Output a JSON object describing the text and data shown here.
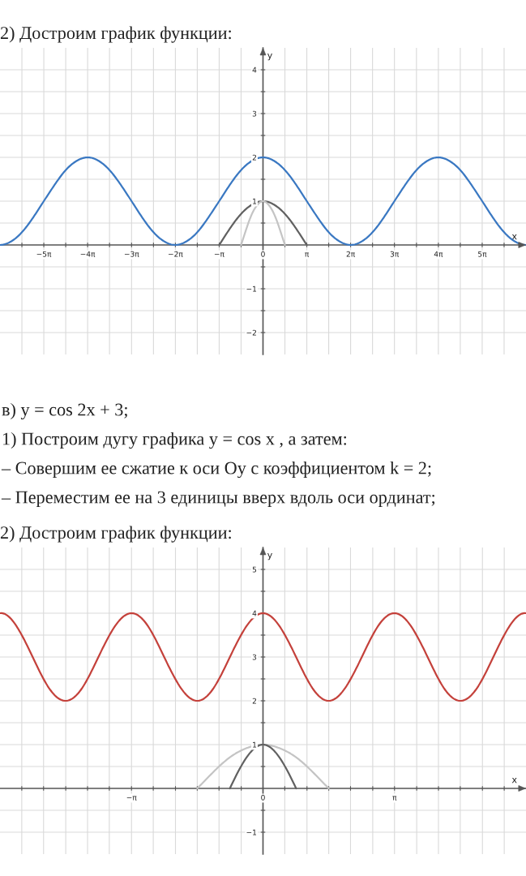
{
  "chart_data": [
    {
      "type": "line",
      "title": "2) Достроим график функции:",
      "xlabel": "x",
      "ylabel": "y",
      "xlim": [
        -18.85,
        18.85
      ],
      "ylim": [
        -2.5,
        4.5
      ],
      "xticks": [
        {
          "value": -17.28,
          "label": null
        },
        {
          "value": -15.71,
          "label": "−5π"
        },
        {
          "value": -14.14,
          "label": null
        },
        {
          "value": -12.57,
          "label": "−4π"
        },
        {
          "value": -11.0,
          "label": null
        },
        {
          "value": -9.42,
          "label": "−3π"
        },
        {
          "value": -7.85,
          "label": null
        },
        {
          "value": -6.28,
          "label": "−2π"
        },
        {
          "value": -4.71,
          "label": null
        },
        {
          "value": -3.14,
          "label": "−π"
        },
        {
          "value": -1.57,
          "label": null
        },
        0,
        {
          "value": 1.57,
          "label": null
        },
        {
          "value": 3.14,
          "label": "π"
        },
        {
          "value": 4.71,
          "label": null
        },
        {
          "value": 6.28,
          "label": "2π"
        },
        {
          "value": 7.85,
          "label": null
        },
        {
          "value": 9.42,
          "label": "3π"
        },
        {
          "value": 11.0,
          "label": null
        },
        {
          "value": 12.57,
          "label": "4π"
        },
        {
          "value": 14.14,
          "label": null
        },
        {
          "value": 15.71,
          "label": "5π"
        },
        {
          "value": 17.28,
          "label": null
        }
      ],
      "yticks": [
        {
          "value": -2,
          "label": "−2"
        },
        {
          "value": -1.5,
          "label": null
        },
        {
          "value": -1,
          "label": "−1"
        },
        {
          "value": -0.5,
          "label": null
        },
        {
          "value": 0.5,
          "label": null
        },
        1,
        {
          "value": 1.5,
          "label": null
        },
        2,
        {
          "value": 2.5,
          "label": null
        },
        3,
        {
          "value": 3.5,
          "label": null
        },
        4
      ],
      "grid": true,
      "line_style": "solid",
      "series": [
        {
          "color": "#3a78c2",
          "x": [
            -18.85,
            -18.06,
            -17.28,
            -16.49,
            -15.71,
            -14.92,
            -14.14,
            -13.35,
            -12.57,
            -11.78,
            -11.0,
            -10.21,
            -9.42,
            -8.64,
            -7.85,
            -7.07,
            -6.28,
            -5.5,
            -4.71,
            -3.93,
            -3.14,
            -2.36,
            -1.57,
            -0.79,
            0,
            0.79,
            1.57,
            2.36,
            3.14,
            3.93,
            4.71,
            5.5,
            6.28,
            7.07,
            7.85,
            8.64,
            9.42,
            10.21,
            11.0,
            11.78,
            12.57,
            13.35,
            14.14,
            14.92,
            15.71,
            16.49,
            17.28,
            18.06,
            18.85
          ],
          "values": [
            0,
            0.08,
            0.29,
            0.62,
            1,
            1.38,
            1.71,
            1.92,
            2,
            1.92,
            1.71,
            1.38,
            1,
            0.62,
            0.29,
            0.08,
            0,
            0.08,
            0.29,
            0.62,
            1,
            1.38,
            1.71,
            1.92,
            2,
            1.92,
            1.71,
            1.38,
            1,
            0.62,
            0.29,
            0.08,
            0,
            0.08,
            0.29,
            0.62,
            1,
            1.38,
            1.71,
            1.92,
            2,
            1.92,
            1.71,
            1.38,
            1,
            0.62,
            0.29,
            0.08,
            0
          ]
        },
        {
          "color": "#616161",
          "x": [
            -3.14,
            -2.36,
            -1.57,
            -0.79,
            0,
            0.79,
            1.57,
            2.36,
            3.14
          ],
          "values": [
            0,
            0.38,
            0.71,
            0.92,
            1,
            0.92,
            0.71,
            0.38,
            0
          ]
        },
        {
          "color": "#c4c4c4",
          "x": [
            -1.57,
            -1.18,
            -0.79,
            -0.39,
            0,
            0.39,
            0.79,
            1.18,
            1.57
          ],
          "values": [
            0,
            0.38,
            0.71,
            0.92,
            1,
            0.92,
            0.71,
            0.38,
            0
          ]
        }
      ]
    },
    {
      "type": "line",
      "title": "2) Достроим график функции:",
      "annotations": [
        "в) y = cos 2x + 3;",
        "1) Построим дугу графика y = cos x , а затем:",
        "– Совершим ее сжатие к оси Oy с коэффициентом k = 2;",
        "– Переместим ее на 3 единицы вверх вдоль оси ординат;"
      ],
      "xlabel": "x",
      "ylabel": "y",
      "xlim": [
        -6.28,
        6.28
      ],
      "ylim": [
        -1.5,
        5.5
      ],
      "xticks": [
        {
          "value": -5.76,
          "label": null
        },
        {
          "value": -5.24,
          "label": null
        },
        {
          "value": -4.71,
          "label": null
        },
        {
          "value": -4.19,
          "label": null
        },
        {
          "value": -3.67,
          "label": null
        },
        {
          "value": -3.14,
          "label": "−π"
        },
        {
          "value": -2.62,
          "label": null
        },
        {
          "value": -2.09,
          "label": null
        },
        {
          "value": -1.57,
          "label": null
        },
        {
          "value": -1.05,
          "label": null
        },
        {
          "value": -0.52,
          "label": null
        },
        0,
        {
          "value": 0.52,
          "label": null
        },
        {
          "value": 1.05,
          "label": null
        },
        {
          "value": 1.57,
          "label": null
        },
        {
          "value": 2.09,
          "label": null
        },
        {
          "value": 2.62,
          "label": null
        },
        {
          "value": 3.14,
          "label": "π"
        },
        {
          "value": 3.67,
          "label": null
        },
        {
          "value": 4.19,
          "label": null
        },
        {
          "value": 4.71,
          "label": null
        },
        {
          "value": 5.24,
          "label": null
        },
        {
          "value": 5.76,
          "label": null
        }
      ],
      "yticks": [
        {
          "value": -1,
          "label": "−1"
        },
        {
          "value": -0.5,
          "label": null
        },
        {
          "value": 0.5,
          "label": null
        },
        1,
        {
          "value": 1.5,
          "label": null
        },
        2,
        {
          "value": 2.5,
          "label": null
        },
        3,
        {
          "value": 3.5,
          "label": null
        },
        4,
        {
          "value": 4.5,
          "label": null
        },
        5
      ],
      "grid": true,
      "line_style": "solid",
      "series": [
        {
          "color": "#c4413b",
          "x": [
            -6.28,
            -5.89,
            -5.5,
            -5.11,
            -4.71,
            -4.32,
            -3.93,
            -3.53,
            -3.14,
            -2.75,
            -2.36,
            -1.96,
            -1.57,
            -1.18,
            -0.79,
            -0.39,
            0,
            0.39,
            0.79,
            1.18,
            1.57,
            1.96,
            2.36,
            2.75,
            3.14,
            3.53,
            3.93,
            4.32,
            4.71,
            5.11,
            5.5,
            5.89,
            6.28
          ],
          "values": [
            4,
            3.71,
            3,
            2.29,
            2,
            2.29,
            3,
            3.71,
            4,
            3.71,
            3,
            2.29,
            2,
            2.29,
            3,
            3.71,
            4,
            3.71,
            3,
            2.29,
            2,
            2.29,
            3,
            3.71,
            4,
            3.71,
            3,
            2.29,
            2,
            2.29,
            3,
            3.71,
            4
          ]
        },
        {
          "color": "#c4c4c4",
          "x": [
            -1.57,
            -1.18,
            -0.79,
            -0.39,
            0,
            0.39,
            0.79,
            1.18,
            1.57
          ],
          "values": [
            0,
            0.38,
            0.71,
            0.92,
            1,
            0.92,
            0.71,
            0.38,
            0
          ]
        },
        {
          "color": "#616161",
          "x": [
            -0.79,
            -0.39,
            0,
            0.39,
            0.79
          ],
          "values": [
            0,
            0.71,
            1,
            0.71,
            0
          ]
        }
      ]
    }
  ]
}
